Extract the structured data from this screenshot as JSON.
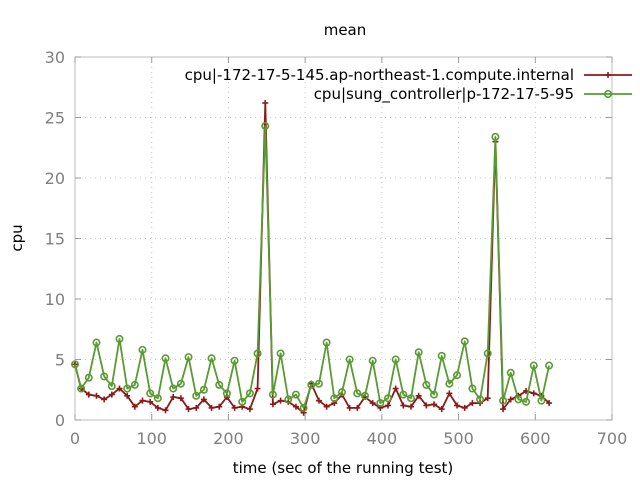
{
  "chart_data": {
    "type": "line",
    "title": "mean",
    "xlabel": "time (sec of the running test)",
    "ylabel": "cpu",
    "xlim": [
      0,
      700
    ],
    "ylim": [
      0,
      30
    ],
    "xticks": [
      0,
      100,
      200,
      300,
      400,
      500,
      600,
      700
    ],
    "yticks": [
      0,
      5,
      10,
      15,
      20,
      25,
      30
    ],
    "grid": true,
    "legend_position": "top-right",
    "series": [
      {
        "name": "cpu|-172-17-5-145.ap-northeast-1.compute.internal",
        "color": "#8b1a1a",
        "marker": "plus",
        "x": [
          0,
          8,
          18,
          28,
          38,
          48,
          58,
          68,
          78,
          88,
          98,
          108,
          118,
          128,
          138,
          148,
          158,
          168,
          178,
          188,
          198,
          208,
          218,
          228,
          238,
          248,
          258,
          268,
          278,
          288,
          298,
          308,
          318,
          328,
          338,
          348,
          358,
          368,
          378,
          388,
          398,
          408,
          418,
          428,
          438,
          448,
          458,
          468,
          478,
          488,
          498,
          508,
          518,
          528,
          538,
          548,
          558,
          568,
          578,
          588,
          598,
          608,
          618
        ],
        "y": [
          4.6,
          2.6,
          2.1,
          2.0,
          1.7,
          2.1,
          2.6,
          2.0,
          1.1,
          1.6,
          1.5,
          1.0,
          0.8,
          1.9,
          1.8,
          0.9,
          1.0,
          1.7,
          1.0,
          1.1,
          1.9,
          1.0,
          1.1,
          0.9,
          2.6,
          26.2,
          1.3,
          1.6,
          1.5,
          1.1,
          0.6,
          3.0,
          1.6,
          1.1,
          1.4,
          2.1,
          1.0,
          1.0,
          1.9,
          1.4,
          1.0,
          1.2,
          2.6,
          1.2,
          1.1,
          2.0,
          1.2,
          1.3,
          0.9,
          2.2,
          1.2,
          1.0,
          1.4,
          1.4,
          1.8,
          23.0,
          0.9,
          1.7,
          2.0,
          2.4,
          2.2,
          2.0,
          1.4
        ]
      },
      {
        "name": "cpu|sung_controller|p-172-17-5-95",
        "color": "#5a9a32",
        "marker": "circle",
        "x": [
          0,
          8,
          18,
          28,
          38,
          48,
          58,
          68,
          78,
          88,
          98,
          108,
          118,
          128,
          138,
          148,
          158,
          168,
          178,
          188,
          198,
          208,
          218,
          228,
          238,
          248,
          258,
          268,
          278,
          288,
          298,
          308,
          318,
          328,
          338,
          348,
          358,
          368,
          378,
          388,
          398,
          408,
          418,
          428,
          438,
          448,
          458,
          468,
          478,
          488,
          498,
          508,
          518,
          528,
          538,
          548,
          558,
          568,
          578,
          588,
          598,
          608,
          618
        ],
        "y": [
          4.6,
          2.6,
          3.5,
          6.4,
          3.6,
          2.8,
          6.7,
          2.6,
          2.9,
          5.8,
          2.2,
          1.8,
          5.1,
          2.6,
          3.0,
          5.2,
          2.0,
          2.5,
          5.1,
          2.9,
          2.2,
          4.9,
          1.5,
          2.2,
          5.5,
          24.3,
          2.1,
          5.5,
          1.7,
          2.1,
          1.0,
          2.9,
          3.0,
          6.4,
          1.8,
          2.3,
          5.0,
          2.2,
          2.0,
          4.9,
          1.4,
          1.8,
          5.0,
          2.1,
          1.8,
          5.6,
          2.9,
          2.1,
          5.3,
          3.0,
          3.7,
          6.5,
          2.6,
          1.7,
          5.5,
          23.4,
          1.6,
          3.9,
          1.7,
          1.5,
          4.5,
          1.6,
          4.5
        ]
      }
    ]
  }
}
